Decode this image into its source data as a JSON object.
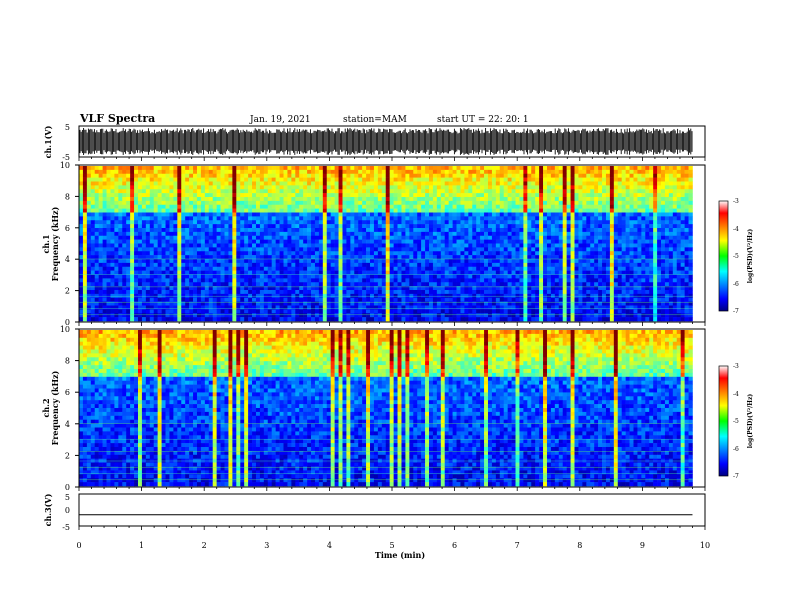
{
  "header": {
    "title": "VLF Spectra",
    "date": "Jan. 19, 2021",
    "station": "station=MAM",
    "start": "start UT =  22: 20: 1"
  },
  "chart_data": [
    {
      "type": "line",
      "panel": "ch1-waveform",
      "ylabel": "ch.1(V)",
      "ylim": [
        -5,
        5
      ],
      "yticks": [
        "5",
        "-5"
      ],
      "description_values": "dense oscillating waveform spanning nearly full range",
      "x_range_min": [
        0,
        9.8
      ]
    },
    {
      "type": "heatmap",
      "panel": "ch1-spectrogram",
      "ylabel": "ch.1 Frequency (kHz)",
      "ylim": [
        0,
        10
      ],
      "yticks": [
        "0",
        "2",
        "4",
        "6",
        "8",
        "10"
      ],
      "colorbar": {
        "label": "log(PSD)(V²/Hz)",
        "range": [
          -7,
          -3
        ],
        "ticks": [
          "-3",
          "-4",
          "-5",
          "-6",
          "-7"
        ]
      }
    },
    {
      "type": "heatmap",
      "panel": "ch2-spectrogram",
      "ylabel": "ch.2 Frequency (kHz)",
      "ylim": [
        0,
        10
      ],
      "yticks": [
        "0",
        "2",
        "4",
        "6",
        "8",
        "10"
      ],
      "colorbar": {
        "label": "log(PSD)(V²/Hz)",
        "range": [
          -7,
          -3
        ],
        "ticks": [
          "-3",
          "-4",
          "-5",
          "-6",
          "-7"
        ]
      }
    },
    {
      "type": "line",
      "panel": "ch3-waveform",
      "ylabel": "ch.3(V)",
      "ylim": [
        -5,
        5
      ],
      "yticks": [
        "5",
        "0",
        "-5"
      ],
      "x": [
        0,
        9.8
      ],
      "y": [
        -1.5,
        -1.5
      ]
    }
  ],
  "xaxis": {
    "label": "Time (min)",
    "range": [
      0,
      10
    ],
    "ticks": [
      "0",
      "1",
      "2",
      "3",
      "4",
      "5",
      "6",
      "7",
      "8",
      "9",
      "10"
    ]
  }
}
